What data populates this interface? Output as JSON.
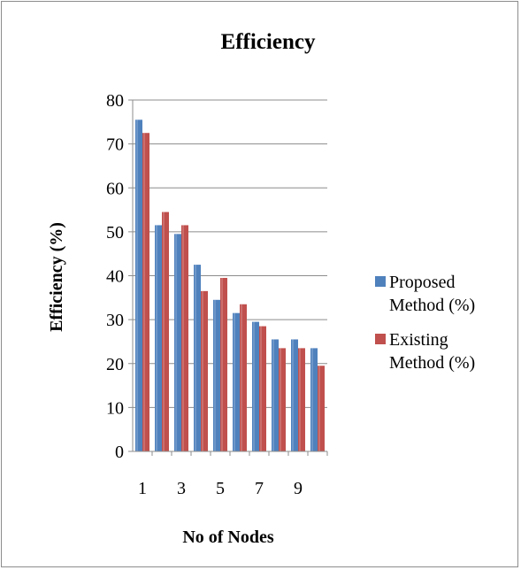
{
  "chart_data": {
    "type": "bar",
    "title": "Efficiency",
    "xlabel": "No of Nodes",
    "ylabel": "Efficiency (%)",
    "ylim": [
      0,
      80
    ],
    "yticks": [
      0,
      10,
      20,
      30,
      40,
      50,
      60,
      70,
      80
    ],
    "categories": [
      1,
      2,
      3,
      4,
      5,
      6,
      7,
      8,
      9,
      10
    ],
    "xtick_labels_shown": [
      "1",
      "3",
      "5",
      "7",
      "9"
    ],
    "grid": true,
    "legend_position": "right",
    "series": [
      {
        "name": "Proposed Method (%)",
        "legend_lines": [
          "Proposed",
          "Method (%)"
        ],
        "color": "#4f81bd",
        "values": [
          75.5,
          51.5,
          49.5,
          42.5,
          34.5,
          31.5,
          29.5,
          25.5,
          25.5,
          23.5
        ]
      },
      {
        "name": "Existing Method (%)",
        "legend_lines": [
          "Existing",
          "Method (%)"
        ],
        "color": "#c0504d",
        "values": [
          72.5,
          54.5,
          51.5,
          36.5,
          39.5,
          33.5,
          28.5,
          23.5,
          23.5,
          19.5
        ]
      }
    ]
  }
}
